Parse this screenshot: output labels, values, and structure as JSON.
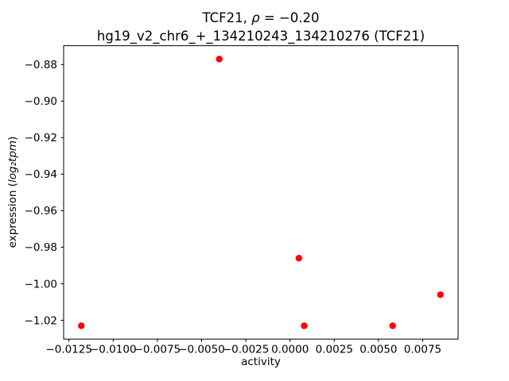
{
  "figure": {
    "title_line1_prefix": "TCF21, ",
    "title_line1_rho": "ρ",
    "title_line1_rest": " = −0.20",
    "title_line2": "hg19_v2_chr6_+_134210243_134210276 (TCF21)",
    "xlabel": "activity",
    "ylabel_prefix": "expression (",
    "ylabel_math": "log₂tpm",
    "ylabel_suffix": ")"
  },
  "chart_data": {
    "type": "scatter",
    "title": "TCF21, ρ = −0.20",
    "subtitle": "hg19_v2_chr6_+_134210243_134210276 (TCF21)",
    "xlabel": "activity",
    "ylabel": "expression (log2 tpm)",
    "grid": false,
    "legend": "none",
    "marker_color": "#ff0000",
    "xlim": [
      -0.0128,
      0.0095
    ],
    "ylim": [
      -1.0303,
      -0.8697
    ],
    "xticks": {
      "values": [
        -0.0125,
        -0.01,
        -0.0075,
        -0.005,
        -0.0025,
        0.0,
        0.0025,
        0.005,
        0.0075
      ],
      "labels": [
        "−0.0125",
        "−0.0100",
        "−0.0075",
        "−0.0050",
        "−0.0025",
        "0.0000",
        "0.0025",
        "0.0050",
        "0.0075"
      ]
    },
    "yticks": {
      "values": [
        -0.88,
        -0.9,
        -0.92,
        -0.94,
        -0.96,
        -0.98,
        -1.0,
        -1.02
      ],
      "labels": [
        "−0.88",
        "−0.90",
        "−0.92",
        "−0.94",
        "−0.96",
        "−0.98",
        "−1.00",
        "−1.02"
      ]
    },
    "points": [
      [
        -0.0118,
        -1.023
      ],
      [
        -0.004,
        -0.877
      ],
      [
        0.0005,
        -0.986
      ],
      [
        0.0008,
        -1.023
      ],
      [
        0.0058,
        -1.023
      ],
      [
        0.0085,
        -1.006
      ]
    ]
  }
}
